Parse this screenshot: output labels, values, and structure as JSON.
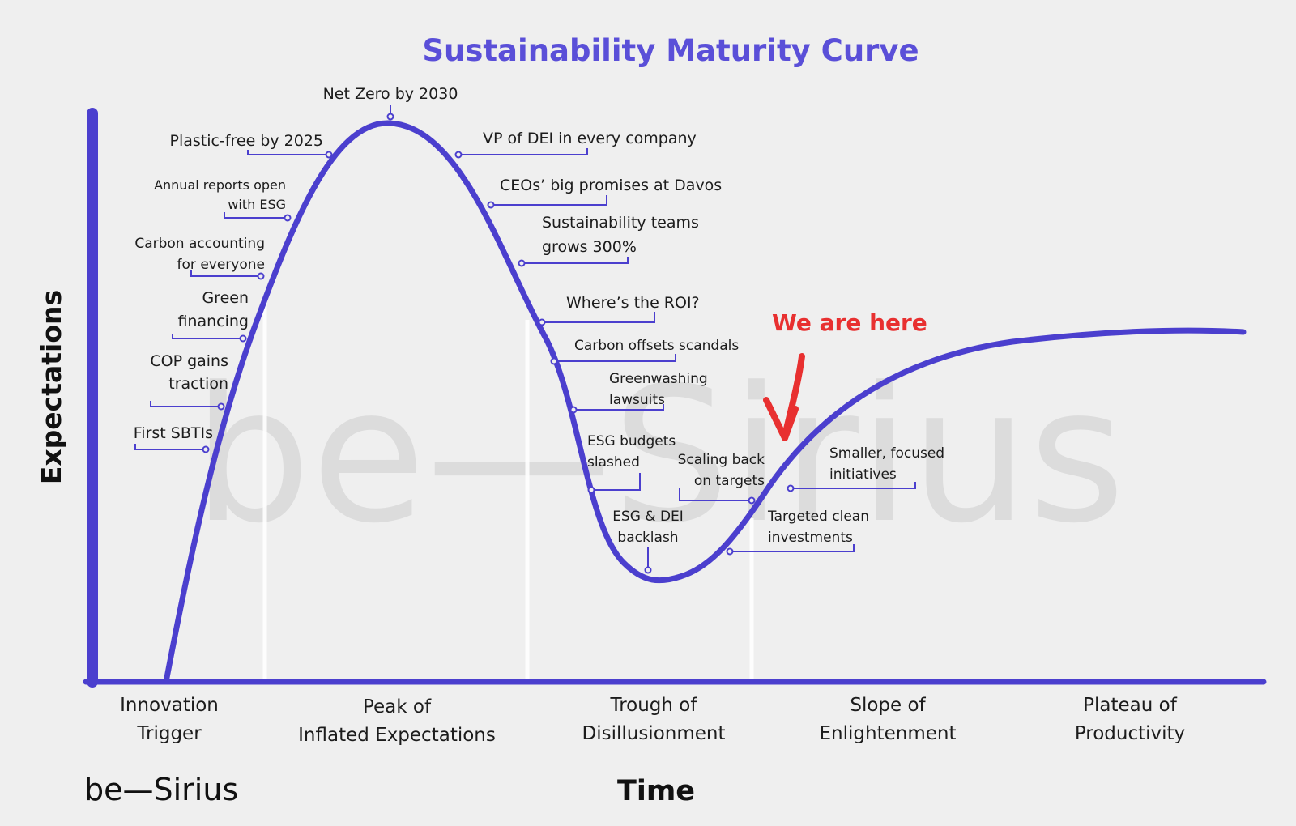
{
  "title": "Sustainability Maturity Curve",
  "y_axis_label": "Expectations",
  "x_axis_label": "Time",
  "brand": "be—Sirius",
  "watermark": "be—Sirius",
  "colors": {
    "curve": "#4b3fce",
    "title": "#5a4fd8",
    "callout": "#e83030",
    "text": "#1c1c1c",
    "background": "#efefef"
  },
  "phases": [
    {
      "lines": [
        "Innovation",
        "Trigger"
      ]
    },
    {
      "lines": [
        "Peak of",
        "Inflated Expectations"
      ]
    },
    {
      "lines": [
        "Trough of",
        "Disillusionment"
      ]
    },
    {
      "lines": [
        "Slope of",
        "Enlightenment"
      ]
    },
    {
      "lines": [
        "Plateau of",
        "Productivity"
      ]
    }
  ],
  "annotations": [
    {
      "lines": [
        "First SBTIs"
      ]
    },
    {
      "lines": [
        "COP gains",
        "traction"
      ]
    },
    {
      "lines": [
        "Green",
        "financing"
      ]
    },
    {
      "lines": [
        "Carbon accounting",
        "for everyone"
      ]
    },
    {
      "lines": [
        "Annual reports open",
        "with ESG"
      ]
    },
    {
      "lines": [
        "Plastic-free by 2025"
      ]
    },
    {
      "lines": [
        "Net Zero by 2030"
      ]
    },
    {
      "lines": [
        "VP of DEI in every company"
      ]
    },
    {
      "lines": [
        "CEOs’ big promises at Davos"
      ]
    },
    {
      "lines": [
        "Sustainability teams",
        "grows 300%"
      ]
    },
    {
      "lines": [
        "Where’s the ROI?"
      ]
    },
    {
      "lines": [
        "Carbon offsets scandals"
      ]
    },
    {
      "lines": [
        "Greenwashing",
        "lawsuits"
      ]
    },
    {
      "lines": [
        "ESG budgets",
        "slashed"
      ]
    },
    {
      "lines": [
        "ESG & DEI",
        "backlash"
      ]
    },
    {
      "lines": [
        "Scaling back",
        "on targets"
      ]
    },
    {
      "lines": [
        "Targeted clean",
        "investments"
      ]
    },
    {
      "lines": [
        "Smaller, focused",
        "initiatives"
      ]
    }
  ],
  "callout": {
    "text": "We are here",
    "icon": "red-arrow-icon"
  }
}
